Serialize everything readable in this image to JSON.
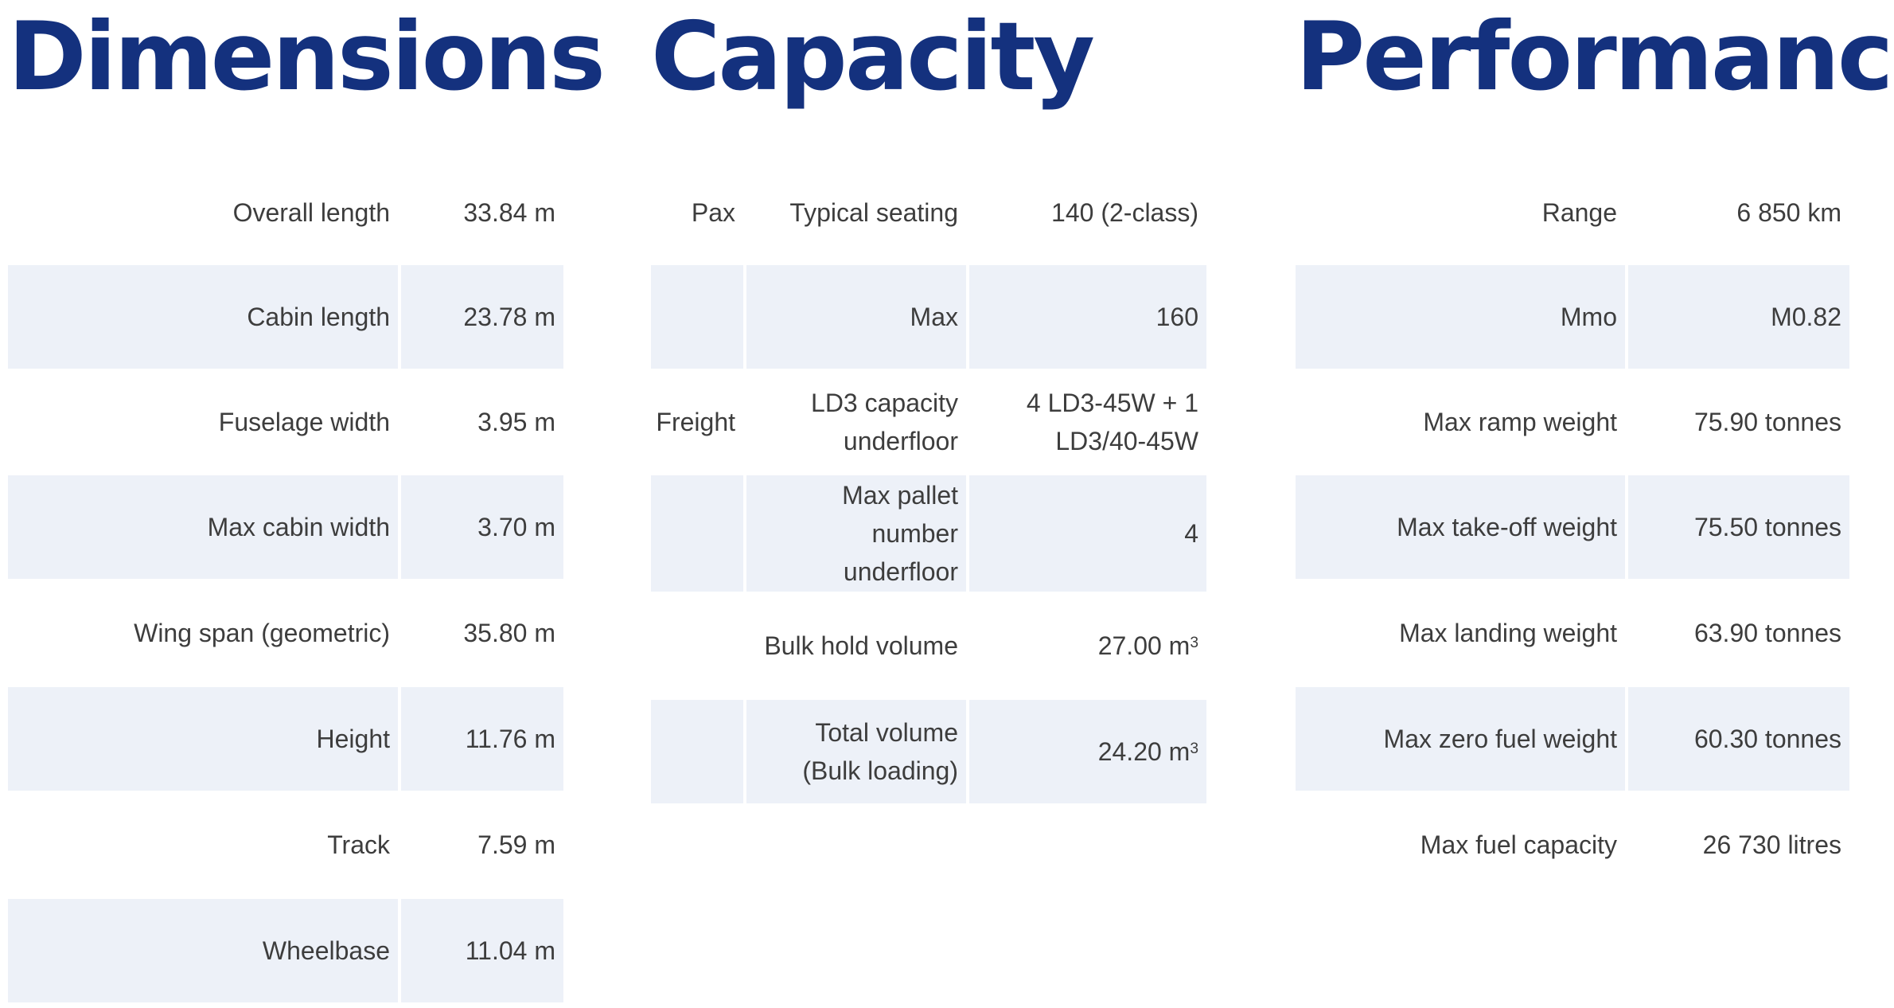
{
  "dimensions": {
    "title": "Dimensions",
    "rows": [
      {
        "label": "Overall length",
        "value": "33.84 m"
      },
      {
        "label": "Cabin length",
        "value": "23.78 m"
      },
      {
        "label": "Fuselage width",
        "value": "3.95 m"
      },
      {
        "label": "Max cabin width",
        "value": "3.70 m"
      },
      {
        "label": "Wing span (geometric)",
        "value": "35.80 m"
      },
      {
        "label": "Height",
        "value": "11.76 m"
      },
      {
        "label": "Track",
        "value": "7.59 m"
      },
      {
        "label": "Wheelbase",
        "value": "11.04 m"
      }
    ]
  },
  "capacity": {
    "title": "Capacity",
    "rows": [
      {
        "group": "Pax",
        "label": "Typical seating",
        "value": "140 (2-class)"
      },
      {
        "group": "",
        "label": "Max",
        "value": "160"
      },
      {
        "group": "Freight",
        "label": "LD3 capacity underfloor",
        "value": "4 LD3-45W + 1 LD3/40-45W"
      },
      {
        "group": "",
        "label": "Max pallet number underfloor",
        "value": "4"
      },
      {
        "group": "",
        "label": "Bulk hold volume",
        "value": "27.00 m",
        "unit_sup": "3"
      },
      {
        "group": "",
        "label": "Total volume (Bulk loading)",
        "value": "24.20 m",
        "unit_sup": "3"
      }
    ]
  },
  "performance": {
    "title": "Performance",
    "rows": [
      {
        "label": "Range",
        "value": "6 850 km"
      },
      {
        "label": "Mmo",
        "value": "M0.82"
      },
      {
        "label": "Max ramp weight",
        "value": "75.90 tonnes"
      },
      {
        "label": "Max take-off weight",
        "value": "75.50 tonnes"
      },
      {
        "label": "Max landing weight",
        "value": "63.90 tonnes"
      },
      {
        "label": "Max zero fuel weight",
        "value": "60.30 tonnes"
      },
      {
        "label": "Max fuel capacity",
        "value": "26 730 litres"
      }
    ]
  }
}
